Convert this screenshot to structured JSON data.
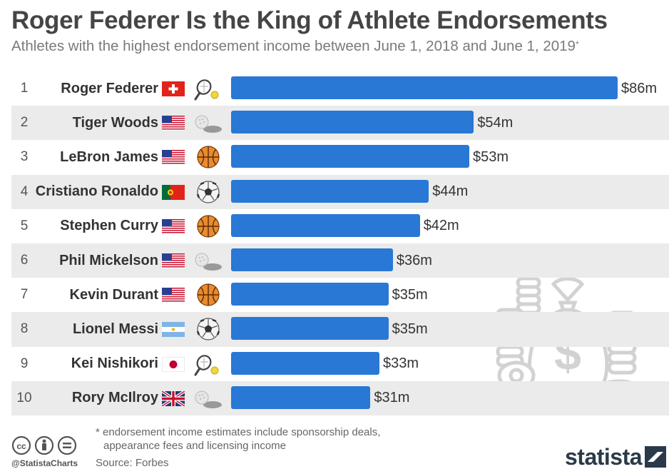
{
  "chart_data": {
    "type": "bar",
    "orientation": "horizontal",
    "title": "Roger Federer Is the King of Athlete Endorsements",
    "subtitle": "Athletes with the highest endorsement income between June 1, 2018 and June 1, 2019",
    "subtitle_marker": "*",
    "unit_prefix": "$",
    "unit_suffix": "m",
    "bar_color": "#2978d6",
    "rows": [
      {
        "rank": "1",
        "name": "Roger Federer",
        "value": 86,
        "label": "$86m",
        "flag": "switzerland",
        "sport": "tennis"
      },
      {
        "rank": "2",
        "name": "Tiger Woods",
        "value": 54,
        "label": "$54m",
        "flag": "usa",
        "sport": "golf"
      },
      {
        "rank": "3",
        "name": "LeBron James",
        "value": 53,
        "label": "$53m",
        "flag": "usa",
        "sport": "basketball"
      },
      {
        "rank": "4",
        "name": "Cristiano Ronaldo",
        "value": 44,
        "label": "$44m",
        "flag": "portugal",
        "sport": "soccer"
      },
      {
        "rank": "5",
        "name": "Stephen Curry",
        "value": 42,
        "label": "$42m",
        "flag": "usa",
        "sport": "basketball"
      },
      {
        "rank": "6",
        "name": "Phil Mickelson",
        "value": 36,
        "label": "$36m",
        "flag": "usa",
        "sport": "golf"
      },
      {
        "rank": "7",
        "name": "Kevin Durant",
        "value": 35,
        "label": "$35m",
        "flag": "usa",
        "sport": "basketball"
      },
      {
        "rank": "8",
        "name": "Lionel Messi",
        "value": 35,
        "label": "$35m",
        "flag": "argentina",
        "sport": "soccer"
      },
      {
        "rank": "9",
        "name": "Kei Nishikori",
        "value": 33,
        "label": "$33m",
        "flag": "japan",
        "sport": "tennis"
      },
      {
        "rank": "10",
        "name": "Rory McIlroy",
        "value": 31,
        "label": "$31m",
        "flag": "uk",
        "sport": "golf"
      }
    ]
  },
  "footnote": {
    "line1": "* endorsement income estimates include sponsorship deals,",
    "line2": "appearance fees and licensing income"
  },
  "source": "Source: Forbes",
  "handle": "@StatistaCharts",
  "brand": "statista",
  "icons": {
    "license": [
      "cc-icon",
      "attribution-icon",
      "no-derivatives-icon"
    ],
    "illustration": "money-bag-icon"
  }
}
